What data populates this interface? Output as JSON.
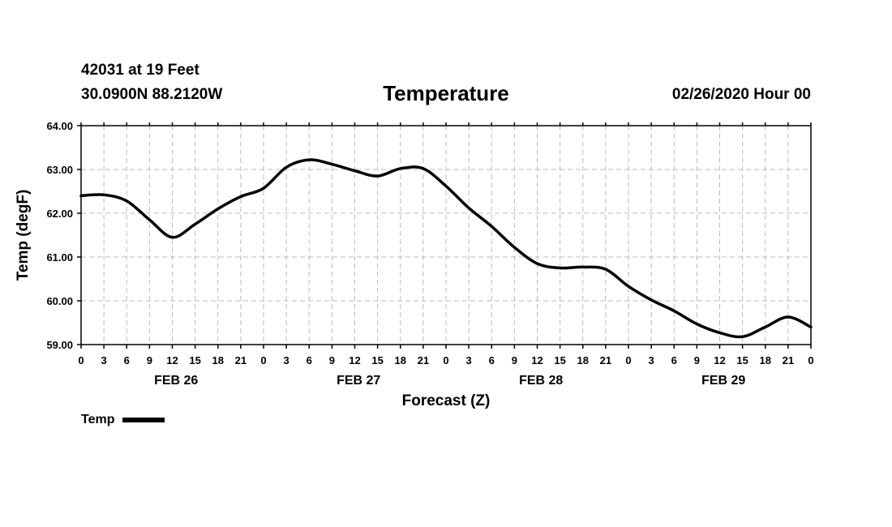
{
  "header": {
    "station": "42031 at 19 Feet",
    "coordinates": "30.0900N 88.2120W",
    "title": "Temperature",
    "issued": "02/26/2020 Hour 00"
  },
  "chart_data": {
    "type": "line",
    "title": "Temperature",
    "xlabel": "Forecast (Z)",
    "ylabel": "Temp (degF)",
    "ylim": [
      59.0,
      64.0
    ],
    "yticks": [
      "59.00",
      "60.00",
      "61.00",
      "62.00",
      "63.00",
      "64.00"
    ],
    "xticks": [
      "0",
      "3",
      "6",
      "9",
      "12",
      "15",
      "18",
      "21",
      "0",
      "3",
      "6",
      "9",
      "12",
      "15",
      "18",
      "21",
      "0",
      "3",
      "6",
      "9",
      "12",
      "15",
      "18",
      "21",
      "0",
      "3",
      "6",
      "9",
      "12",
      "15",
      "18",
      "21",
      "0"
    ],
    "day_labels": [
      "FEB 26",
      "FEB 27",
      "FEB 28",
      "FEB 29"
    ],
    "grid": true,
    "legend_position": "bottom-left",
    "series": [
      {
        "name": "Temp",
        "color": "#000000",
        "x_hours": [
          0,
          3,
          6,
          9,
          12,
          15,
          18,
          21,
          24,
          27,
          30,
          33,
          36,
          39,
          42,
          45,
          48,
          51,
          54,
          57,
          60,
          63,
          66,
          69,
          72,
          75,
          78,
          81,
          84,
          87,
          90,
          93,
          96
        ],
        "values": [
          62.4,
          62.42,
          62.28,
          61.85,
          61.45,
          61.75,
          62.1,
          62.38,
          62.57,
          63.05,
          63.22,
          63.12,
          62.97,
          62.85,
          63.02,
          63.02,
          62.62,
          62.12,
          61.7,
          61.22,
          60.85,
          60.75,
          60.77,
          60.72,
          60.33,
          60.02,
          59.77,
          59.47,
          59.27,
          59.18,
          59.4,
          59.63,
          59.4
        ]
      }
    ]
  }
}
